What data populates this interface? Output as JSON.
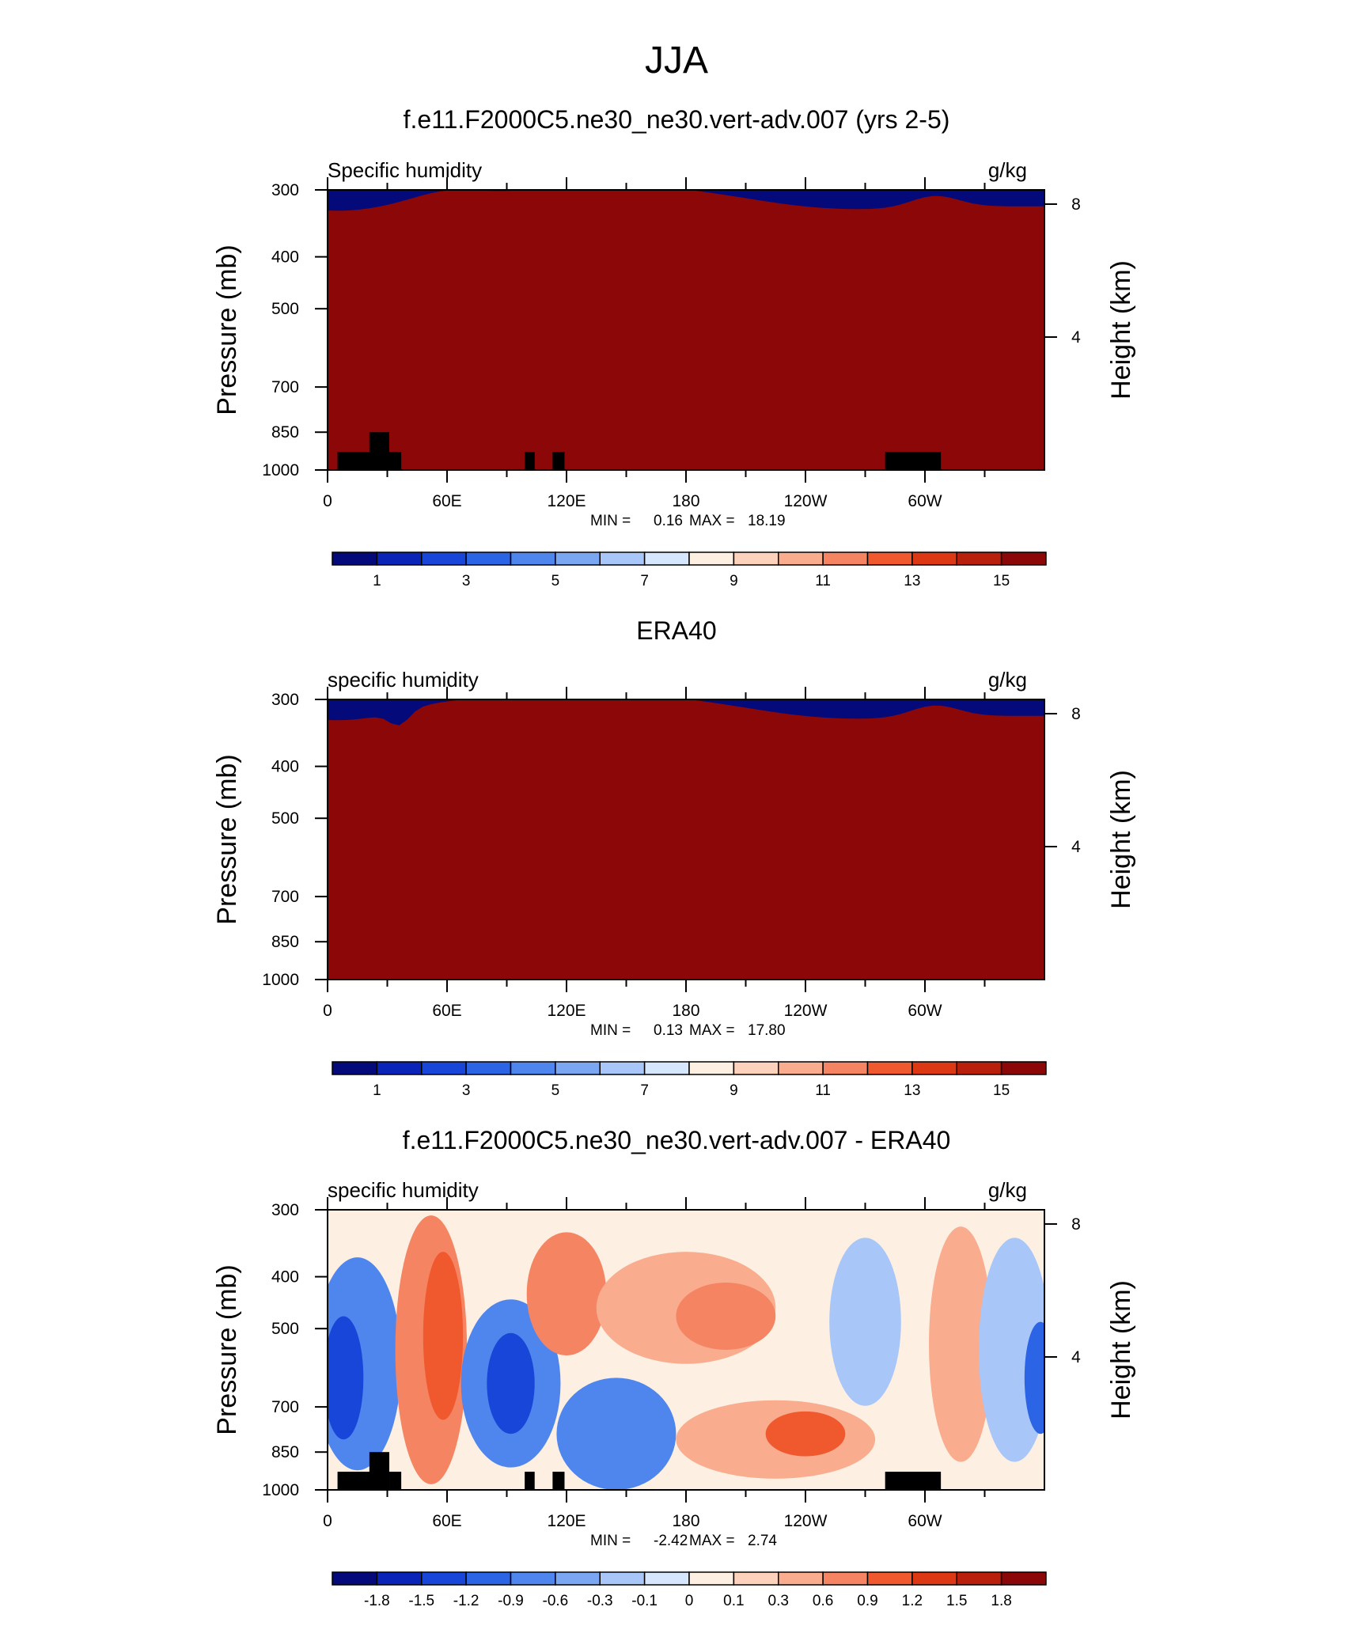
{
  "figure": {
    "title": "JJA"
  },
  "chart_data": [
    {
      "type": "heatmap",
      "title": "f.e11.F2000C5.ne30_ne30.vert-adv.007 (yrs 2-5)",
      "left_label": "Specific humidity",
      "right_label": "g/kg",
      "ylabel": "Pressure (mb)",
      "y2label": "Height (km)",
      "xticks": [
        "0",
        "60E",
        "120E",
        "180",
        "120W",
        "60W"
      ],
      "yticks": [
        "300",
        "400",
        "500",
        "700",
        "850",
        "1000"
      ],
      "y2ticks": [
        "8",
        "4"
      ],
      "stats": {
        "min_label": "MIN =",
        "min": "0.16",
        "max_label": "MAX =",
        "max": "18.19"
      },
      "colorbar": {
        "labels": [
          "1",
          "3",
          "5",
          "7",
          "9",
          "11",
          "13",
          "15"
        ],
        "colors": [
          "#040a7a",
          "#0a24b8",
          "#1846d8",
          "#2c64e6",
          "#4f86ee",
          "#7aa6f2",
          "#a8c6f8",
          "#d6e6fc",
          "#fdf0e2",
          "#fcd2bc",
          "#f9ac8e",
          "#f58462",
          "#f0582e",
          "#dc3814",
          "#b8200c",
          "#8c0808"
        ]
      }
    },
    {
      "type": "heatmap",
      "title": "ERA40",
      "left_label": "specific humidity",
      "right_label": "g/kg",
      "ylabel": "Pressure (mb)",
      "y2label": "Height (km)",
      "xticks": [
        "0",
        "60E",
        "120E",
        "180",
        "120W",
        "60W"
      ],
      "yticks": [
        "300",
        "400",
        "500",
        "700",
        "850",
        "1000"
      ],
      "y2ticks": [
        "8",
        "4"
      ],
      "stats": {
        "min_label": "MIN =",
        "min": "0.13",
        "max_label": "MAX =",
        "max": "17.80"
      },
      "colorbar": {
        "labels": [
          "1",
          "3",
          "5",
          "7",
          "9",
          "11",
          "13",
          "15"
        ],
        "colors": [
          "#040a7a",
          "#0a24b8",
          "#1846d8",
          "#2c64e6",
          "#4f86ee",
          "#7aa6f2",
          "#a8c6f8",
          "#d6e6fc",
          "#fdf0e2",
          "#fcd2bc",
          "#f9ac8e",
          "#f58462",
          "#f0582e",
          "#dc3814",
          "#b8200c",
          "#8c0808"
        ]
      }
    },
    {
      "type": "heatmap",
      "title": "f.e11.F2000C5.ne30_ne30.vert-adv.007 - ERA40",
      "left_label": "specific humidity",
      "right_label": "g/kg",
      "ylabel": "Pressure (mb)",
      "y2label": "Height (km)",
      "xticks": [
        "0",
        "60E",
        "120E",
        "180",
        "120W",
        "60W"
      ],
      "yticks": [
        "300",
        "400",
        "500",
        "700",
        "850",
        "1000"
      ],
      "y2ticks": [
        "8",
        "4"
      ],
      "stats": {
        "min_label": "MIN =",
        "min": "-2.42",
        "max_label": "MAX =",
        "max": "2.74"
      },
      "colorbar": {
        "labels": [
          "-1.8",
          "-1.5",
          "-1.2",
          "-0.9",
          "-0.6",
          "-0.3",
          "-0.1",
          "0",
          "0.1",
          "0.3",
          "0.6",
          "0.9",
          "1.2",
          "1.5",
          "1.8"
        ],
        "colors": [
          "#040a7a",
          "#0a24b8",
          "#1846d8",
          "#2c64e6",
          "#4f86ee",
          "#7aa6f2",
          "#a8c6f8",
          "#d6e6fc",
          "#fdf0e2",
          "#fcd2bc",
          "#f9ac8e",
          "#f58462",
          "#f0582e",
          "#dc3814",
          "#b8200c",
          "#8c0808"
        ]
      }
    }
  ]
}
